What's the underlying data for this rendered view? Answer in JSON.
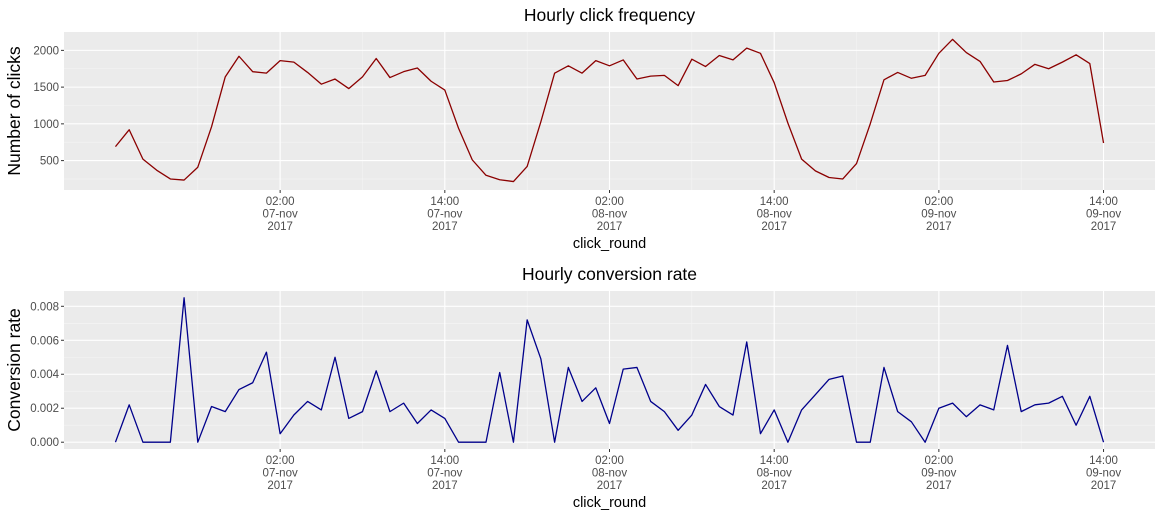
{
  "chart_data": [
    {
      "type": "line",
      "title": "Hourly click frequency",
      "xlabel": "click_round",
      "ylabel": "Number of clicks",
      "line_color": "#8B0000",
      "panel_bg": "#EBEBEB",
      "grid": true,
      "x_start": "2017-11-06 14:00",
      "x_step": "1 hour",
      "x_tick_labels": [
        [
          "02:00",
          "07-nov",
          "2017"
        ],
        [
          "14:00",
          "07-nov",
          "2017"
        ],
        [
          "02:00",
          "08-nov",
          "2017"
        ],
        [
          "14:00",
          "08-nov",
          "2017"
        ],
        [
          "02:00",
          "09-nov",
          "2017"
        ],
        [
          "14:00",
          "09-nov",
          "2017"
        ]
      ],
      "x_tick_hours": [
        12,
        24,
        36,
        48,
        60,
        72
      ],
      "xlim_hours": [
        -3.75,
        75.75
      ],
      "ylim": [
        100,
        2250
      ],
      "y_ticks": [
        500,
        1000,
        1500,
        2000
      ],
      "values": [
        690,
        920,
        520,
        370,
        250,
        235,
        410,
        960,
        1640,
        1920,
        1710,
        1690,
        1860,
        1840,
        1700,
        1540,
        1610,
        1480,
        1640,
        1890,
        1630,
        1710,
        1760,
        1580,
        1460,
        940,
        510,
        300,
        240,
        215,
        420,
        1030,
        1690,
        1790,
        1690,
        1860,
        1790,
        1870,
        1610,
        1650,
        1660,
        1520,
        1880,
        1780,
        1930,
        1870,
        2030,
        1960,
        1560,
        1010,
        520,
        360,
        270,
        250,
        460,
        1000,
        1600,
        1700,
        1620,
        1660,
        1960,
        2150,
        1970,
        1850,
        1570,
        1590,
        1680,
        1810,
        1750,
        1840,
        1940,
        1820,
        740
      ]
    },
    {
      "type": "line",
      "title": "Hourly conversion rate",
      "xlabel": "click_round",
      "ylabel": "Conversion rate",
      "line_color": "#00008B",
      "panel_bg": "#EBEBEB",
      "grid": true,
      "x_start": "2017-11-06 14:00",
      "x_step": "1 hour",
      "x_tick_labels": [
        [
          "02:00",
          "07-nov",
          "2017"
        ],
        [
          "14:00",
          "07-nov",
          "2017"
        ],
        [
          "02:00",
          "08-nov",
          "2017"
        ],
        [
          "14:00",
          "08-nov",
          "2017"
        ],
        [
          "02:00",
          "09-nov",
          "2017"
        ],
        [
          "14:00",
          "09-nov",
          "2017"
        ]
      ],
      "x_tick_hours": [
        12,
        24,
        36,
        48,
        60,
        72
      ],
      "xlim_hours": [
        -3.75,
        75.75
      ],
      "ylim": [
        -0.0004,
        0.0089
      ],
      "y_ticks": [
        "0.000",
        "0.002",
        "0.004",
        "0.006",
        "0.008"
      ],
      "y_tick_values": [
        0,
        0.002,
        0.004,
        0.006,
        0.008
      ],
      "values": [
        0,
        0.0022,
        0,
        0,
        0,
        0.0085,
        0,
        0.0021,
        0.0018,
        0.0031,
        0.0035,
        0.0053,
        0.0005,
        0.0016,
        0.0024,
        0.0019,
        0.005,
        0.0014,
        0.0018,
        0.0042,
        0.0018,
        0.0023,
        0.0011,
        0.0019,
        0.0014,
        0,
        0,
        0,
        0.0041,
        0,
        0.0072,
        0.0049,
        0,
        0.0044,
        0.0024,
        0.0032,
        0.0011,
        0.0043,
        0.0044,
        0.0024,
        0.0018,
        0.0007,
        0.0016,
        0.0034,
        0.0021,
        0.0016,
        0.0059,
        0.0005,
        0.0019,
        0,
        0.0019,
        0.0028,
        0.0037,
        0.0039,
        0,
        0,
        0.0044,
        0.0018,
        0.0012,
        0,
        0.002,
        0.0023,
        0.0015,
        0.0022,
        0.0019,
        0.0057,
        0.0018,
        0.0022,
        0.0023,
        0.0027,
        0.001,
        0.0027,
        0
      ]
    }
  ]
}
